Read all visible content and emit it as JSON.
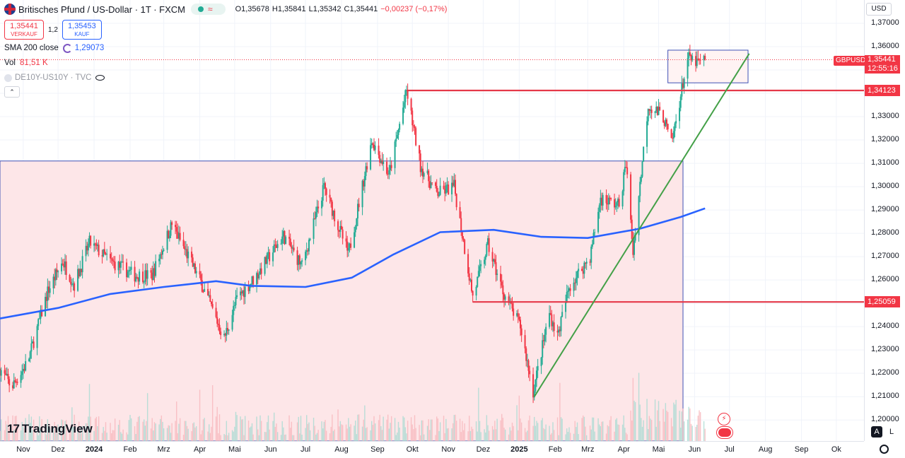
{
  "header": {
    "symbol_title": "Britisches Pfund / US-Dollar · 1T · FXCM",
    "open": "O1,35678",
    "high": "H1,35841",
    "low": "L1,35342",
    "close": "C1,35441",
    "change": "−0,00237 (−0,17%)",
    "wave_glyph": "≈"
  },
  "trade": {
    "sell_price": "1,35441",
    "sell_label": "VERKAUF",
    "spread": "1,2",
    "buy_price": "1,35453",
    "buy_label": "KAUF"
  },
  "indicators": {
    "sma_label": "SMA 200 close",
    "sma_value": "1,29073",
    "vol_label": "Vol",
    "vol_value": "81,51 K",
    "compare_label": "DE10Y-US10Y · TVC"
  },
  "axis": {
    "currency": "USD",
    "auto_label": "A",
    "log_label": "L"
  },
  "price_tags": {
    "symbol": "GBPUSD",
    "current": "1,35441",
    "countdown": "12:55:16",
    "resistance": "1,34123",
    "support": "1,25059"
  },
  "logo": {
    "text": "TradingView",
    "mark": "17"
  },
  "colors": {
    "up": "#22ab94",
    "down": "#f23645",
    "sma": "#2962ff",
    "trendline": "#43a047",
    "hline": "#e53949",
    "zone_fill": "#fde6e8",
    "box_border": "#3f51b5"
  },
  "chart_data": {
    "type": "candlestick",
    "symbol": "GBPUSD",
    "timeframe": "1T",
    "y_range": [
      1.195,
      1.372
    ],
    "y_ticks": [
      "1,37000",
      "1,36000",
      "1,35000",
      "1,34000",
      "1,33000",
      "1,32000",
      "1,31000",
      "1,30000",
      "1,29000",
      "1,28000",
      "1,27000",
      "1,26000",
      "1,25000",
      "1,24000",
      "1,23000",
      "1,22000",
      "1,21000",
      "1,20000"
    ],
    "y_tick_values": [
      1.37,
      1.36,
      1.35,
      1.34,
      1.33,
      1.32,
      1.31,
      1.3,
      1.29,
      1.28,
      1.27,
      1.26,
      1.25,
      1.24,
      1.23,
      1.22,
      1.21,
      1.2
    ],
    "x_ticks": [
      {
        "label": "Nov",
        "date": "2023-11-01"
      },
      {
        "label": "Dez",
        "date": "2023-12-01"
      },
      {
        "label": "2024",
        "date": "2024-01-01",
        "bold": true
      },
      {
        "label": "Feb",
        "date": "2024-02-01"
      },
      {
        "label": "Mrz",
        "date": "2024-03-01"
      },
      {
        "label": "Apr",
        "date": "2024-04-01"
      },
      {
        "label": "Mai",
        "date": "2024-05-01"
      },
      {
        "label": "Jun",
        "date": "2024-06-01"
      },
      {
        "label": "Jul",
        "date": "2024-07-01"
      },
      {
        "label": "Aug",
        "date": "2024-08-01"
      },
      {
        "label": "Sep",
        "date": "2024-09-01"
      },
      {
        "label": "Okt",
        "date": "2024-10-01"
      },
      {
        "label": "Nov",
        "date": "2024-11-01"
      },
      {
        "label": "Dez",
        "date": "2024-12-01"
      },
      {
        "label": "2025",
        "date": "2025-01-01",
        "bold": true
      },
      {
        "label": "Feb",
        "date": "2025-02-01"
      },
      {
        "label": "Mrz",
        "date": "2025-03-01"
      },
      {
        "label": "Apr",
        "date": "2025-04-01"
      },
      {
        "label": "Mai",
        "date": "2025-05-01"
      },
      {
        "label": "Jun",
        "date": "2025-06-01"
      },
      {
        "label": "Jul",
        "date": "2025-07-01"
      },
      {
        "label": "Aug",
        "date": "2025-08-01"
      },
      {
        "label": "Sep",
        "date": "2025-09-01"
      },
      {
        "label": "Ok",
        "date": "2025-10-01"
      }
    ],
    "price_path": [
      {
        "date": "2023-10-12",
        "price": 1.222
      },
      {
        "date": "2023-10-22",
        "price": 1.214
      },
      {
        "date": "2023-11-05",
        "price": 1.225
      },
      {
        "date": "2023-11-22",
        "price": 1.255
      },
      {
        "date": "2023-12-05",
        "price": 1.268
      },
      {
        "date": "2023-12-15",
        "price": 1.258
      },
      {
        "date": "2023-12-28",
        "price": 1.276
      },
      {
        "date": "2024-01-15",
        "price": 1.268
      },
      {
        "date": "2024-02-05",
        "price": 1.262
      },
      {
        "date": "2024-02-20",
        "price": 1.262
      },
      {
        "date": "2024-03-08",
        "price": 1.284
      },
      {
        "date": "2024-03-20",
        "price": 1.272
      },
      {
        "date": "2024-04-02",
        "price": 1.259
      },
      {
        "date": "2024-04-22",
        "price": 1.235
      },
      {
        "date": "2024-05-03",
        "price": 1.252
      },
      {
        "date": "2024-05-20",
        "price": 1.262
      },
      {
        "date": "2024-06-12",
        "price": 1.279
      },
      {
        "date": "2024-06-28",
        "price": 1.266
      },
      {
        "date": "2024-07-17",
        "price": 1.3
      },
      {
        "date": "2024-08-07",
        "price": 1.271
      },
      {
        "date": "2024-08-27",
        "price": 1.32
      },
      {
        "date": "2024-09-11",
        "price": 1.305
      },
      {
        "date": "2024-09-26",
        "price": 1.341
      },
      {
        "date": "2024-10-08",
        "price": 1.309
      },
      {
        "date": "2024-10-22",
        "price": 1.297
      },
      {
        "date": "2024-11-06",
        "price": 1.3
      },
      {
        "date": "2024-11-22",
        "price": 1.253
      },
      {
        "date": "2024-12-05",
        "price": 1.275
      },
      {
        "date": "2024-12-18",
        "price": 1.255
      },
      {
        "date": "2025-01-02",
        "price": 1.24
      },
      {
        "date": "2025-01-13",
        "price": 1.212
      },
      {
        "date": "2025-01-27",
        "price": 1.246
      },
      {
        "date": "2025-02-03",
        "price": 1.236
      },
      {
        "date": "2025-02-13",
        "price": 1.257
      },
      {
        "date": "2025-03-03",
        "price": 1.27
      },
      {
        "date": "2025-03-12",
        "price": 1.295
      },
      {
        "date": "2025-03-28",
        "price": 1.292
      },
      {
        "date": "2025-04-03",
        "price": 1.31
      },
      {
        "date": "2025-04-09",
        "price": 1.272
      },
      {
        "date": "2025-04-22",
        "price": 1.335
      },
      {
        "date": "2025-05-05",
        "price": 1.33
      },
      {
        "date": "2025-05-12",
        "price": 1.318
      },
      {
        "date": "2025-05-26",
        "price": 1.355
      },
      {
        "date": "2025-06-03",
        "price": 1.353
      },
      {
        "date": "2025-06-10",
        "price": 1.354
      }
    ],
    "sma200_path": [
      {
        "date": "2023-10-12",
        "price": 1.2435
      },
      {
        "date": "2023-12-01",
        "price": 1.248
      },
      {
        "date": "2024-01-15",
        "price": 1.254
      },
      {
        "date": "2024-03-01",
        "price": 1.257
      },
      {
        "date": "2024-04-15",
        "price": 1.2595
      },
      {
        "date": "2024-05-15",
        "price": 1.2575
      },
      {
        "date": "2024-07-01",
        "price": 1.257
      },
      {
        "date": "2024-08-10",
        "price": 1.261
      },
      {
        "date": "2024-09-15",
        "price": 1.271
      },
      {
        "date": "2024-10-25",
        "price": 1.2805
      },
      {
        "date": "2024-12-10",
        "price": 1.2815
      },
      {
        "date": "2025-01-20",
        "price": 1.2785
      },
      {
        "date": "2025-03-01",
        "price": 1.278
      },
      {
        "date": "2025-04-15",
        "price": 1.282
      },
      {
        "date": "2025-05-20",
        "price": 1.287
      },
      {
        "date": "2025-06-10",
        "price": 1.2907
      }
    ],
    "horizontal_lines": [
      {
        "price": 1.34123,
        "from": "2024-09-26",
        "to": "2025-09-30"
      },
      {
        "price": 1.25059,
        "from": "2024-11-22",
        "to": "2025-09-30"
      }
    ],
    "trendline": {
      "from": {
        "date": "2025-01-14",
        "price": 1.21
      },
      "to": {
        "date": "2025-07-18",
        "price": 1.357
      }
    },
    "zones": [
      {
        "from_date": "2023-10-12",
        "to_date": "2025-05-22",
        "top": 1.311,
        "bottom": 1.195
      },
      {
        "from_date": "2025-05-09",
        "to_date": "2025-07-17",
        "top": 1.3585,
        "bottom": 1.3445
      }
    ],
    "current_price": 1.35441
  }
}
